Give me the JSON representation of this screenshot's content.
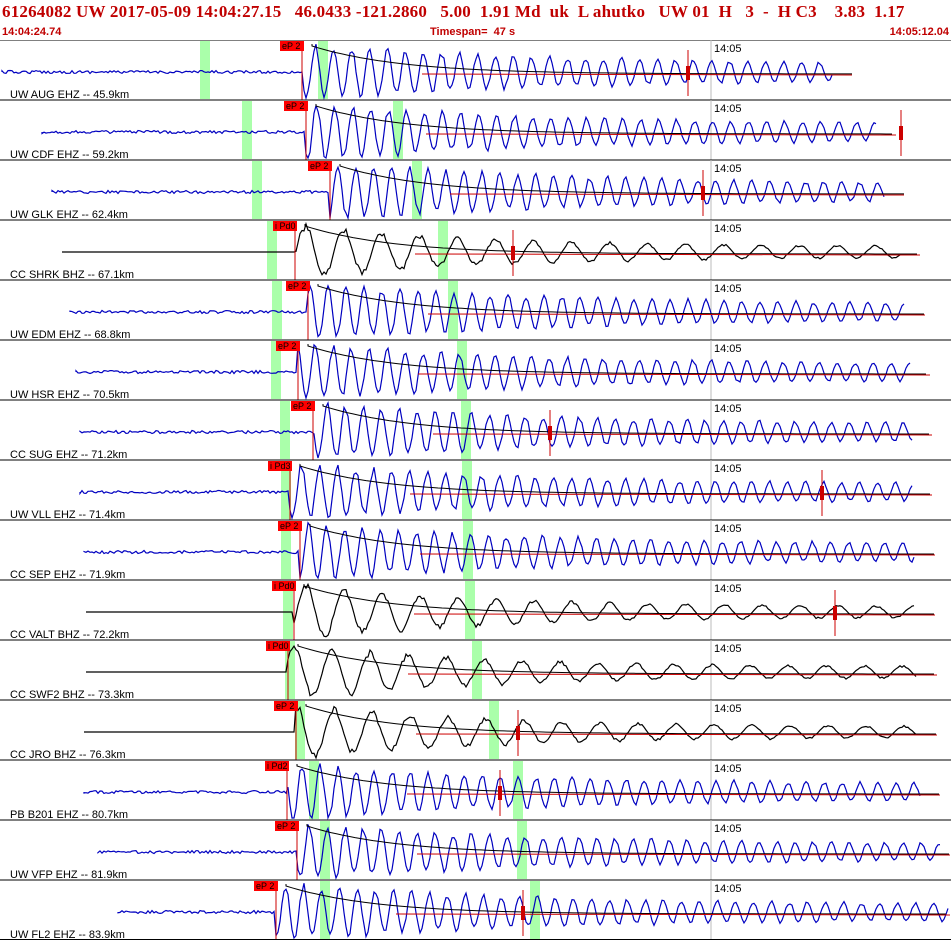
{
  "header": {
    "title": "61264082 UW 2017-05-09 14:04:27.15   46.0433 -121.2860   5.00  1.91 Md  uk  L ahutko   UW 01  H   3  -  H C3    3.83  1.17",
    "start_time": "14:04:24.74",
    "timespan": "Timespan=  47 s",
    "end_time": "14:05:12.04"
  },
  "time_marker_label": "14:05",
  "colors": {
    "header_text": "#c00000",
    "trace_short_period": "#0000c0",
    "trace_broadband": "#000000",
    "pick_box": "#ff0000",
    "arrival_band": "#aaffaa",
    "coda_curve": "#000000",
    "coda_fit": "#cc0000",
    "grid": "#bbbbbb"
  },
  "channels": [
    {
      "label": "UW AUG EHZ -- 45.9km",
      "pick": "eP 2",
      "type": "EHZ"
    },
    {
      "label": "UW CDF EHZ -- 59.2km",
      "pick": "eP 2",
      "type": "EHZ"
    },
    {
      "label": "UW GLK EHZ -- 62.4km",
      "pick": "eP 2",
      "type": "EHZ"
    },
    {
      "label": "CC SHRK BHZ -- 67.1km",
      "pick": "i Pd0",
      "type": "BHZ"
    },
    {
      "label": "UW EDM EHZ -- 68.8km",
      "pick": "eP 2",
      "type": "EHZ"
    },
    {
      "label": "UW HSR EHZ -- 70.5km",
      "pick": "eP 2",
      "type": "EHZ"
    },
    {
      "label": "CC SUG EHZ -- 71.2km",
      "pick": "eP 2",
      "type": "EHZ"
    },
    {
      "label": "UW VLL EHZ -- 71.4km",
      "pick": "i Pd3",
      "type": "EHZ"
    },
    {
      "label": "CC SEP EHZ -- 71.9km",
      "pick": "eP 2",
      "type": "EHZ"
    },
    {
      "label": "CC VALT BHZ -- 72.2km",
      "pick": "i Pd0",
      "type": "BHZ"
    },
    {
      "label": "CC SWF2 BHZ -- 73.3km",
      "pick": "i Pd0",
      "type": "BHZ"
    },
    {
      "label": "CC JRO BHZ -- 76.3km",
      "pick": "eP 2",
      "type": "BHZ"
    },
    {
      "label": "PB B201 EHZ -- 80.7km",
      "pick": "i Pd2",
      "type": "EHZ"
    },
    {
      "label": "UW VFP EHZ -- 81.9km",
      "pick": "eP 2",
      "type": "EHZ"
    },
    {
      "label": "UW FL2 EHZ -- 83.9km",
      "pick": "eP 2",
      "type": "EHZ"
    }
  ]
}
